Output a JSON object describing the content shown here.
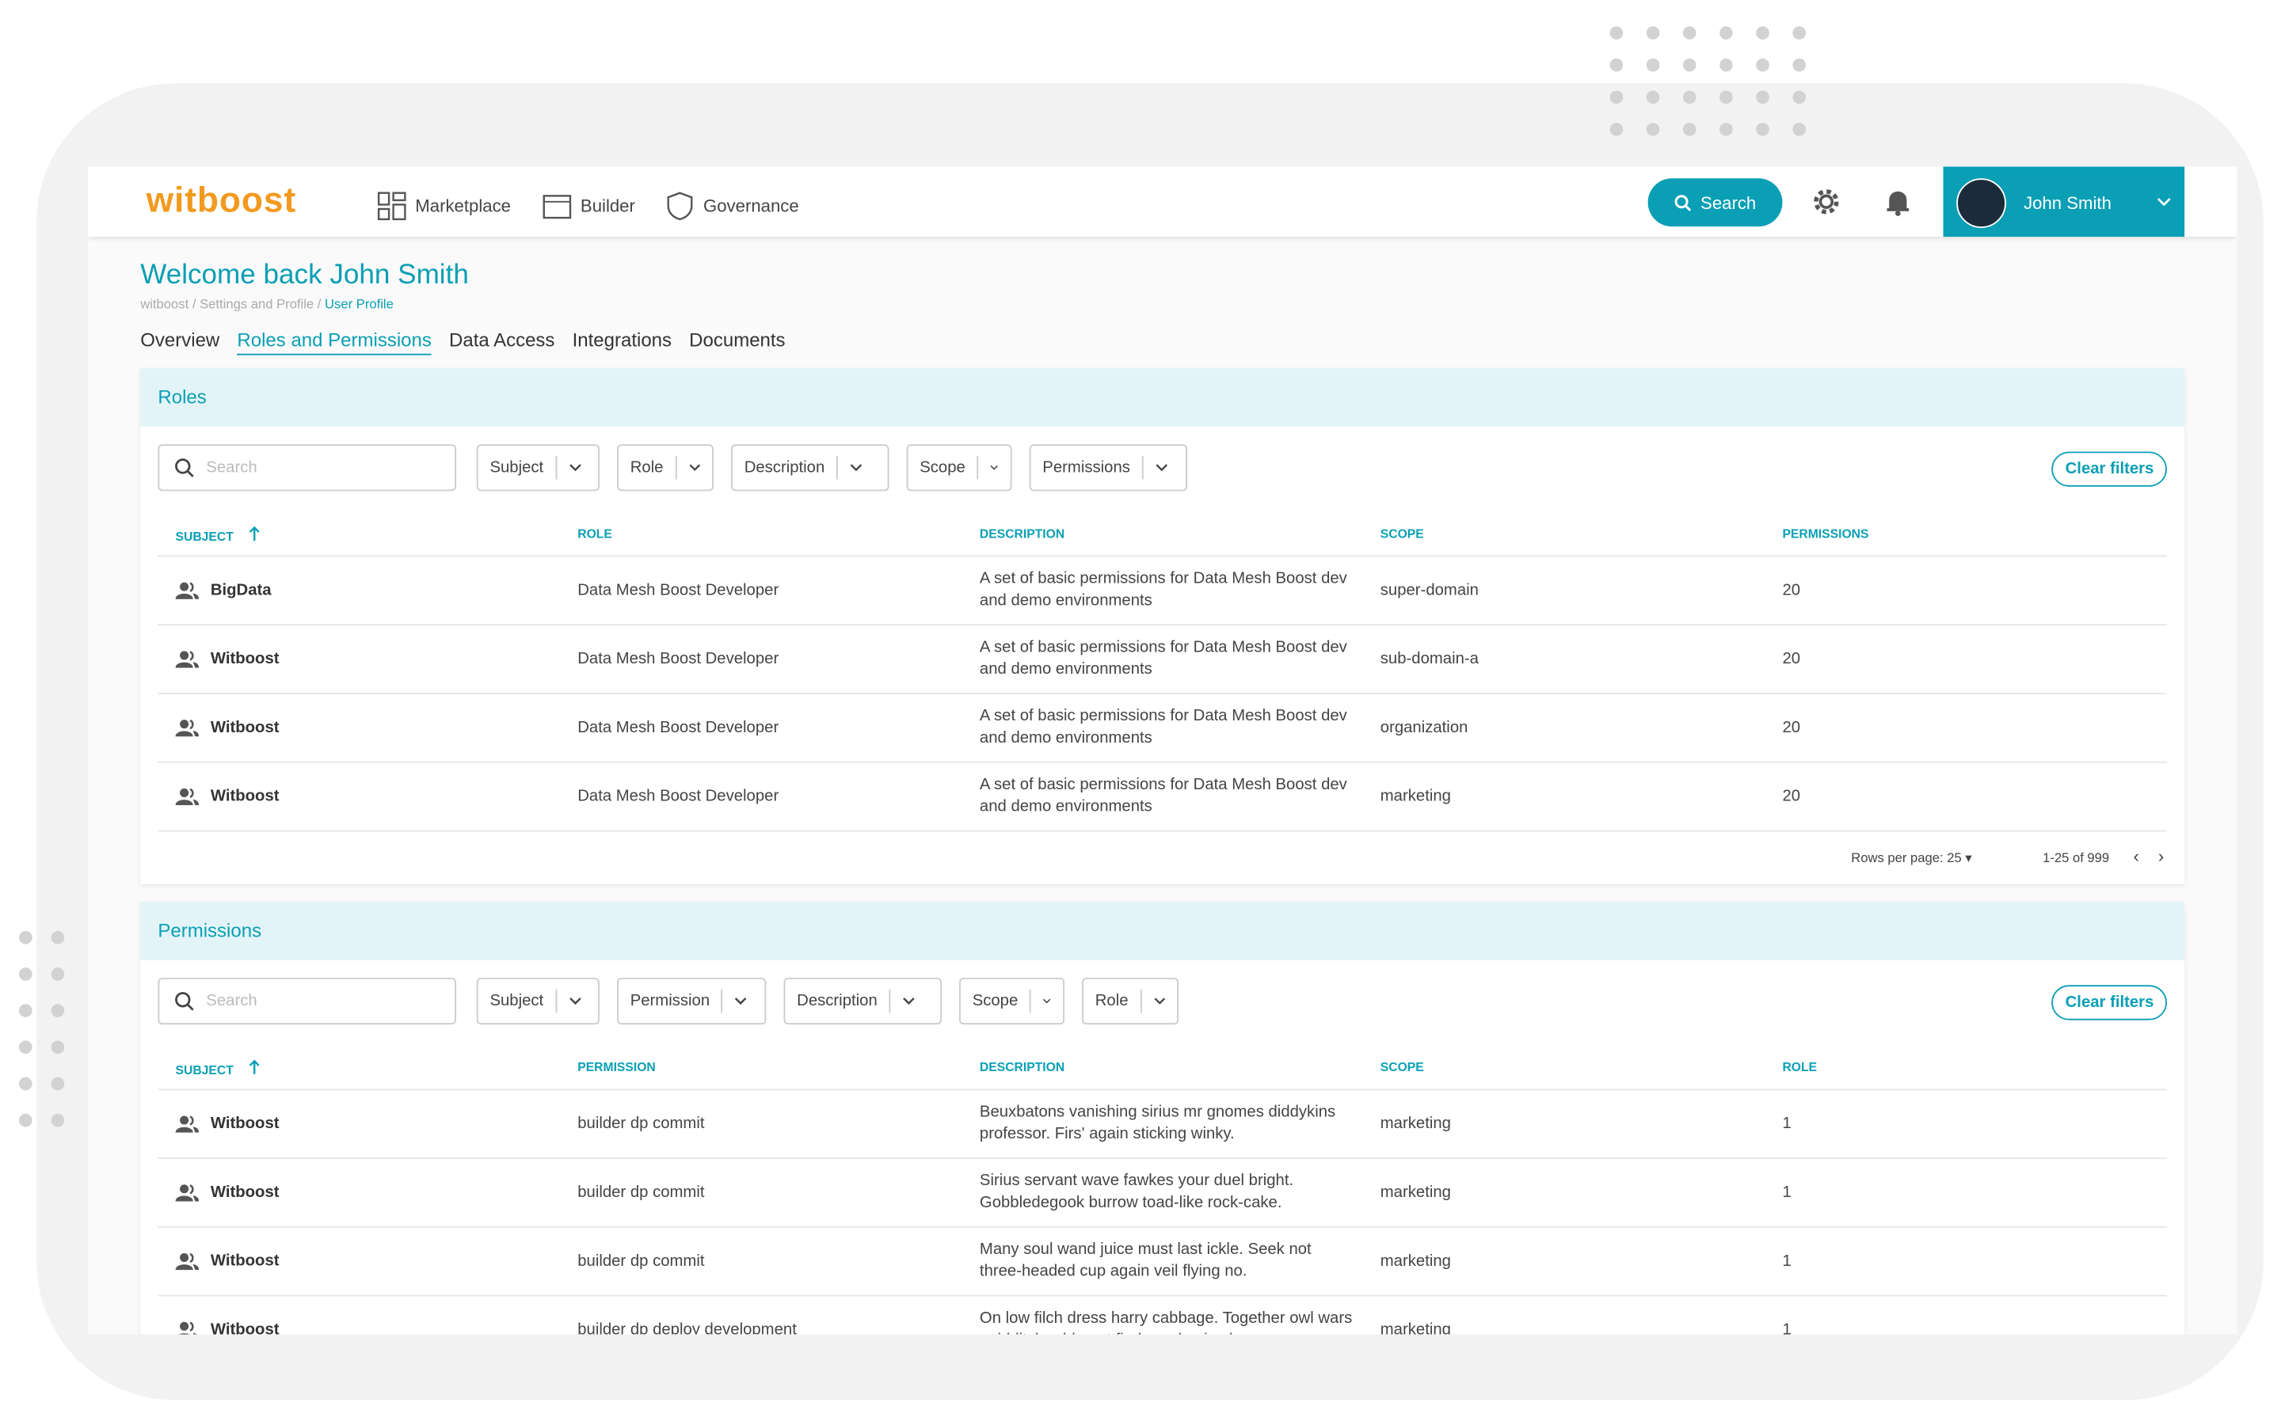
{
  "header": {
    "logo": "witboost",
    "nav": [
      "Marketplace",
      "Builder",
      "Governance"
    ],
    "search_button": "Search",
    "user": "John Smith"
  },
  "page": {
    "title": "Welcome back John Smith",
    "breadcrumbs": [
      "witboost",
      "Settings and Profile",
      "User Profile"
    ],
    "tabs": [
      "Overview",
      "Roles and Permissions",
      "Data Access",
      "Integrations",
      "Documents"
    ],
    "active_tab": 1
  },
  "roles": {
    "title": "Roles",
    "search_placeholder": "Search",
    "filters": [
      "Subject",
      "Role",
      "Description",
      "Scope",
      "Permissions"
    ],
    "clear_filters": "Clear filters",
    "columns": [
      "SUBJECT",
      "ROLE",
      "DESCRIPTION",
      "SCOPE",
      "PERMISSIONS"
    ],
    "rows": [
      [
        "BigData",
        "Data Mesh Boost Developer",
        "A set of basic permissions for Data Mesh Boost dev and demo environments",
        "super-domain",
        "20"
      ],
      [
        "Witboost",
        "Data Mesh Boost Developer",
        "A set of basic permissions for Data Mesh Boost dev and demo environments",
        "sub-domain-a",
        "20"
      ],
      [
        "Witboost",
        "Data Mesh Boost Developer",
        "A set of basic permissions for Data Mesh Boost dev and demo environments",
        "organization",
        "20"
      ],
      [
        "Witboost",
        "Data Mesh Boost Developer",
        "A set of basic permissions for Data Mesh Boost dev and demo environments",
        "marketing",
        "20"
      ]
    ],
    "pagination": {
      "rows_per_page": "Rows per page: 25",
      "range": "1-25 of 999"
    }
  },
  "permissions": {
    "title": "Permissions",
    "search_placeholder": "Search",
    "filters": [
      "Subject",
      "Permission",
      "Description",
      "Scope",
      "Role"
    ],
    "clear_filters": "Clear filters",
    "columns": [
      "SUBJECT",
      "PERMISSION",
      "DESCRIPTION",
      "SCOPE",
      "ROLE"
    ],
    "rows": [
      [
        "Witboost",
        "builder dp commit",
        "Beuxbatons vanishing sirius mr gnomes diddykins professor. Firs' again sticking winky.",
        "marketing",
        "1"
      ],
      [
        "Witboost",
        "builder dp commit",
        "Sirius servant wave fawkes your duel bright. Gobbledegook burrow toad-like rock-cake.",
        "marketing",
        "1"
      ],
      [
        "Witboost",
        "builder dp commit",
        "Many soul wand juice must last ickle. Seek not three-headed cup again veil flying no.",
        "marketing",
        "1"
      ],
      [
        "Witboost",
        "builder dp deploy development",
        "On low filch dress harry cabbage. Together owl wars quidditch oddment find prophecies l",
        "marketing",
        "1"
      ]
    ]
  }
}
